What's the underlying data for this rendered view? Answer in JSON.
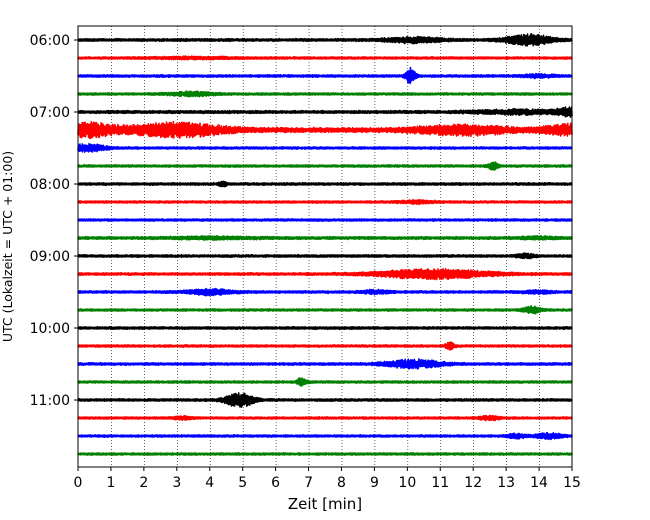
{
  "chart_data": {
    "type": "line",
    "title": "",
    "xlabel": "Zeit  [min]",
    "ylabel": "UTC (Lokalzeit = UTC + 01:00)",
    "xlim": [
      0,
      15
    ],
    "xticks": [
      0,
      1,
      2,
      3,
      4,
      5,
      6,
      7,
      8,
      9,
      10,
      11,
      12,
      13,
      14,
      15
    ],
    "x_grid": true,
    "y_grid": false,
    "row_interval_min": 15,
    "first_row_time": "06:00",
    "last_row_time": "11:45",
    "row_count": 24,
    "ytick_labels": [
      "06:00",
      "07:00",
      "08:00",
      "09:00",
      "10:00",
      "11:00"
    ],
    "color_cycle": [
      "#000000",
      "#ff0000",
      "#0000ff",
      "#008000"
    ],
    "rows": [
      {
        "time": "06:00",
        "color": "#000000",
        "base": 1.2,
        "bursts": [
          [
            10.2,
            0.6,
            2.5
          ],
          [
            13.7,
            0.5,
            5
          ]
        ]
      },
      {
        "time": "06:15",
        "color": "#ff0000",
        "base": 1.0,
        "bursts": [
          [
            3.5,
            1.0,
            0.8
          ]
        ]
      },
      {
        "time": "06:30",
        "color": "#0000ff",
        "base": 1.1,
        "bursts": [
          [
            10.1,
            0.1,
            8
          ],
          [
            14.0,
            0.3,
            1.5
          ]
        ]
      },
      {
        "time": "06:45",
        "color": "#008000",
        "base": 1.0,
        "bursts": [
          [
            3.5,
            0.5,
            1.8
          ]
        ]
      },
      {
        "time": "07:00",
        "color": "#000000",
        "base": 1.3,
        "bursts": [
          [
            13.5,
            1.0,
            2
          ],
          [
            15.0,
            0.3,
            3.5
          ]
        ]
      },
      {
        "time": "07:15",
        "color": "#ff0000",
        "base": 2.2,
        "bursts": [
          [
            0.3,
            0.6,
            6
          ],
          [
            3.0,
            1.0,
            6
          ],
          [
            11.7,
            1.0,
            4
          ],
          [
            15.0,
            0.6,
            4.5
          ]
        ]
      },
      {
        "time": "07:30",
        "color": "#0000ff",
        "base": 1.0,
        "bursts": [
          [
            0.3,
            0.4,
            3.5
          ]
        ]
      },
      {
        "time": "07:45",
        "color": "#008000",
        "base": 1.0,
        "bursts": [
          [
            12.6,
            0.1,
            4
          ]
        ]
      },
      {
        "time": "08:00",
        "color": "#000000",
        "base": 1.1,
        "bursts": [
          [
            4.4,
            0.1,
            2
          ]
        ]
      },
      {
        "time": "08:15",
        "color": "#ff0000",
        "base": 1.0,
        "bursts": [
          [
            10.3,
            0.4,
            1.2
          ]
        ]
      },
      {
        "time": "08:30",
        "color": "#0000ff",
        "base": 1.0,
        "bursts": []
      },
      {
        "time": "08:45",
        "color": "#008000",
        "base": 1.2,
        "bursts": [
          [
            4.0,
            1.0,
            0.8
          ],
          [
            14.0,
            0.4,
            1.0
          ]
        ]
      },
      {
        "time": "09:00",
        "color": "#000000",
        "base": 1.1,
        "bursts": [
          [
            13.6,
            0.2,
            2
          ]
        ]
      },
      {
        "time": "09:15",
        "color": "#ff0000",
        "base": 1.1,
        "bursts": [
          [
            10.8,
            1.2,
            4.5
          ]
        ]
      },
      {
        "time": "09:30",
        "color": "#0000ff",
        "base": 1.1,
        "bursts": [
          [
            4.0,
            0.5,
            2.5
          ],
          [
            9.0,
            0.3,
            1.5
          ],
          [
            14.0,
            0.3,
            1.2
          ]
        ]
      },
      {
        "time": "09:45",
        "color": "#008000",
        "base": 1.0,
        "bursts": [
          [
            13.8,
            0.2,
            3
          ]
        ]
      },
      {
        "time": "10:00",
        "color": "#000000",
        "base": 1.1,
        "bursts": []
      },
      {
        "time": "10:15",
        "color": "#ff0000",
        "base": 1.0,
        "bursts": [
          [
            11.3,
            0.1,
            3
          ]
        ]
      },
      {
        "time": "10:30",
        "color": "#0000ff",
        "base": 1.1,
        "bursts": [
          [
            10.2,
            0.6,
            4
          ]
        ]
      },
      {
        "time": "10:45",
        "color": "#008000",
        "base": 1.0,
        "bursts": [
          [
            6.8,
            0.1,
            4
          ]
        ]
      },
      {
        "time": "11:00",
        "color": "#000000",
        "base": 1.1,
        "bursts": [
          [
            4.9,
            0.3,
            7
          ]
        ]
      },
      {
        "time": "11:15",
        "color": "#ff0000",
        "base": 1.0,
        "bursts": [
          [
            3.2,
            0.2,
            1.5
          ],
          [
            12.5,
            0.2,
            2
          ]
        ]
      },
      {
        "time": "11:30",
        "color": "#0000ff",
        "base": 1.0,
        "bursts": [
          [
            13.3,
            0.2,
            2
          ],
          [
            14.3,
            0.3,
            2.5
          ]
        ]
      },
      {
        "time": "11:45",
        "color": "#008000",
        "base": 1.0,
        "bursts": []
      }
    ]
  }
}
